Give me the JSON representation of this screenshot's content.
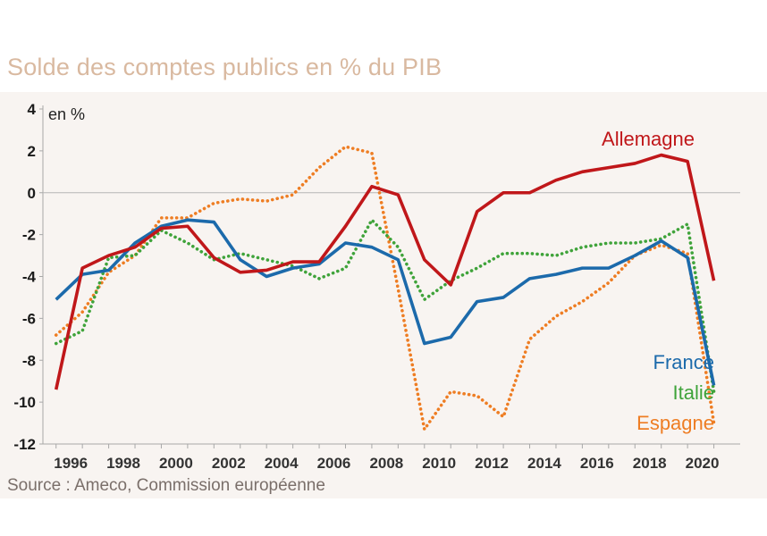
{
  "chart_data": {
    "type": "line",
    "title": "Solde des comptes publics en % du PIB",
    "ylabel": "en %",
    "xlabel": "",
    "ylim": [
      -12,
      4
    ],
    "yticks": [
      4,
      2,
      0,
      -2,
      -4,
      -6,
      -8,
      -10,
      -12
    ],
    "x": [
      1995,
      1996,
      1997,
      1998,
      1999,
      2000,
      2001,
      2002,
      2003,
      2004,
      2005,
      2006,
      2007,
      2008,
      2009,
      2010,
      2011,
      2012,
      2013,
      2014,
      2015,
      2016,
      2017,
      2018,
      2019,
      2020
    ],
    "xticks": [
      "1996",
      "1998",
      "2000",
      "2002",
      "2004",
      "2006",
      "2008",
      "2010",
      "2012",
      "2014",
      "2016",
      "2018",
      "2020"
    ],
    "series": [
      {
        "name": "Allemagne",
        "color": "#c0171a",
        "style": "solid",
        "values": [
          -9.4,
          -3.6,
          -3.0,
          -2.6,
          -1.7,
          -1.6,
          -3.1,
          -3.8,
          -3.7,
          -3.3,
          -3.3,
          -1.6,
          0.3,
          -0.1,
          -3.2,
          -4.4,
          -0.9,
          0.0,
          0.0,
          0.6,
          1.0,
          1.2,
          1.4,
          1.8,
          1.5,
          -4.2
        ]
      },
      {
        "name": "France",
        "color": "#1c6aab",
        "style": "solid",
        "values": [
          -5.1,
          -3.9,
          -3.7,
          -2.4,
          -1.6,
          -1.3,
          -1.4,
          -3.2,
          -4.0,
          -3.6,
          -3.4,
          -2.4,
          -2.6,
          -3.2,
          -7.2,
          -6.9,
          -5.2,
          -5.0,
          -4.1,
          -3.9,
          -3.6,
          -3.6,
          -3.0,
          -2.3,
          -3.1,
          -9.2
        ]
      },
      {
        "name": "Italie",
        "color": "#3fa33a",
        "style": "dotted",
        "values": [
          -7.2,
          -6.6,
          -3.1,
          -3.0,
          -1.8,
          -2.4,
          -3.2,
          -2.9,
          -3.2,
          -3.5,
          -4.1,
          -3.6,
          -1.3,
          -2.6,
          -5.1,
          -4.2,
          -3.6,
          -2.9,
          -2.9,
          -3.0,
          -2.6,
          -2.4,
          -2.4,
          -2.2,
          -1.5,
          -9.5
        ]
      },
      {
        "name": "Espagne",
        "color": "#ee7d23",
        "style": "dotted",
        "values": [
          -6.8,
          -5.7,
          -3.8,
          -3.0,
          -1.2,
          -1.2,
          -0.5,
          -0.3,
          -0.4,
          -0.1,
          1.2,
          2.2,
          1.9,
          -4.6,
          -11.3,
          -9.5,
          -9.7,
          -10.7,
          -7.0,
          -5.9,
          -5.2,
          -4.3,
          -3.0,
          -2.5,
          -2.9,
          -11.0
        ]
      }
    ],
    "legend": "inline-right",
    "grid": false
  },
  "source": "Source : Ameco, Commission européenne"
}
